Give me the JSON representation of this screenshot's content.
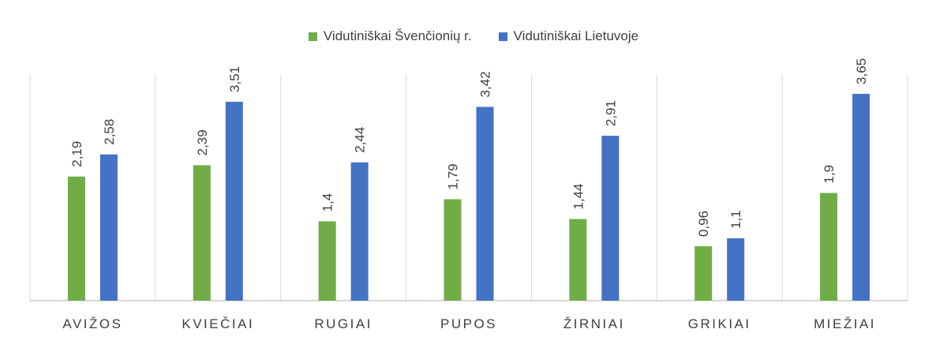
{
  "colors": {
    "series_local": "#70AD47",
    "series_national": "#4472C4",
    "grid": "#D9D9D9",
    "axis": "#BFBFBF",
    "text": "#404040"
  },
  "chart_data": {
    "type": "bar",
    "title": "",
    "xlabel": "",
    "ylabel": "",
    "ylim": [
      0,
      4
    ],
    "grid": "vertical category separators",
    "legend_position": "top",
    "categories": [
      "AVIŽOS",
      "KVIEČIAI",
      "RUGIAI",
      "PUPOS",
      "ŽIRNIAI",
      "GRIKIAI",
      "MIEŽIAI"
    ],
    "series": [
      {
        "name": "Vidutiniškai Švenčionių r.",
        "values": [
          2.19,
          2.39,
          1.4,
          1.79,
          1.44,
          0.96,
          1.9
        ],
        "labels": [
          "2,19",
          "2,39",
          "1,4",
          "1,79",
          "1,44",
          "0,96",
          "1,9"
        ]
      },
      {
        "name": "Vidutiniškai Lietuvoje",
        "values": [
          2.58,
          3.51,
          2.44,
          3.42,
          2.91,
          1.1,
          3.65
        ],
        "labels": [
          "2,58",
          "3,51",
          "2,44",
          "3,42",
          "2,91",
          "1,1",
          "3,65"
        ]
      }
    ]
  }
}
